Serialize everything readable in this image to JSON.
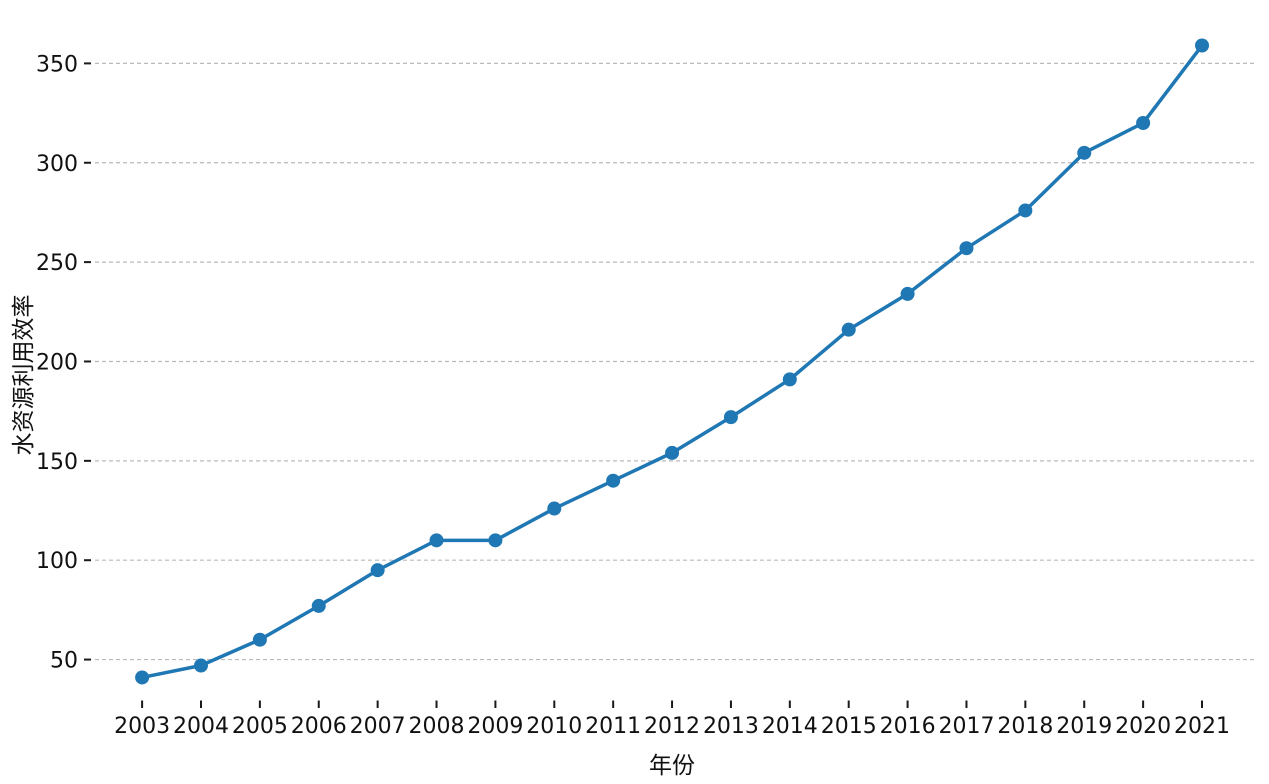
{
  "chart_data": {
    "type": "line",
    "title": "",
    "xlabel": "年份",
    "ylabel": "水资源利用效率",
    "x": [
      2003,
      2004,
      2005,
      2006,
      2007,
      2008,
      2009,
      2010,
      2011,
      2012,
      2013,
      2014,
      2015,
      2016,
      2017,
      2018,
      2019,
      2020,
      2021
    ],
    "values": [
      41,
      47,
      60,
      77,
      95,
      110,
      110,
      126,
      140,
      154,
      172,
      191,
      216,
      234,
      257,
      276,
      305,
      320,
      359
    ],
    "yticks": [
      50,
      100,
      150,
      200,
      250,
      300,
      350
    ],
    "xlim": [
      2002.2,
      2021.9
    ],
    "ylim": [
      29.4,
      381.9
    ],
    "grid": {
      "show": true,
      "orientation": "horizontal",
      "style": "dashed"
    },
    "legend": "none",
    "marker": "circle",
    "colors": {
      "line": "#1f77b4",
      "marker": "#1f77b4",
      "grid": "#bababa",
      "text": "#111111",
      "tick": "#1a1a1a",
      "background": "#ffffff"
    }
  }
}
